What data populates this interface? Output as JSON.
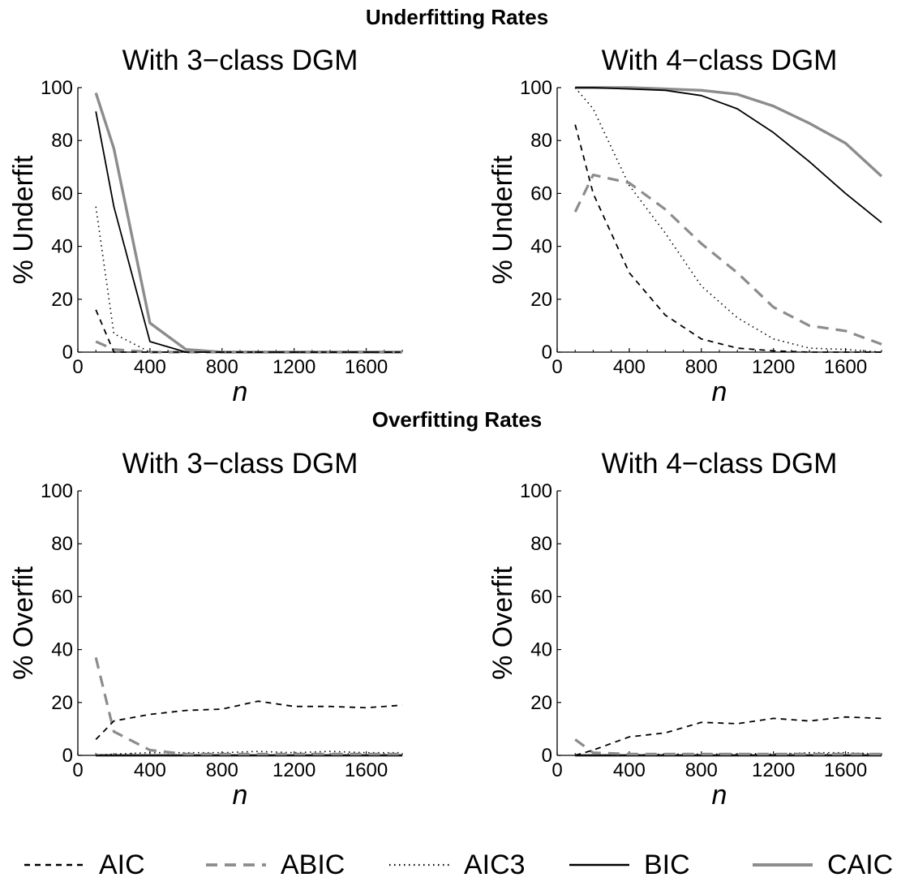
{
  "sections": {
    "underfitting_title": "Underfitting Rates",
    "overfitting_title": "Overfitting Rates"
  },
  "series_styles": [
    {
      "name": "AIC",
      "color": "#000000",
      "dash": "dashed-thin"
    },
    {
      "name": "ABIC",
      "color": "#8c8c8c",
      "dash": "dashed-thick"
    },
    {
      "name": "AIC3",
      "color": "#000000",
      "dash": "dotted"
    },
    {
      "name": "BIC",
      "color": "#000000",
      "dash": "solid-thin"
    },
    {
      "name": "CAIC",
      "color": "#8c8c8c",
      "dash": "solid-thick"
    }
  ],
  "legend": [
    "AIC",
    "ABIC",
    "AIC3",
    "BIC",
    "CAIC"
  ],
  "chart_data": [
    {
      "type": "line",
      "section": "Underfitting Rates",
      "title": "With 3−class DGM",
      "xlabel": "n",
      "ylabel": "% Underfit",
      "xlim": [
        0,
        1800
      ],
      "ylim": [
        0,
        100
      ],
      "xticks": [
        0,
        400,
        800,
        1200,
        1600
      ],
      "yticks": [
        0,
        20,
        40,
        60,
        80,
        100
      ],
      "x": [
        100,
        200,
        400,
        600,
        800,
        1000,
        1200,
        1400,
        1600,
        1800
      ],
      "series": [
        {
          "name": "AIC",
          "values": [
            16,
            0,
            0,
            0,
            0,
            0,
            0,
            0,
            0,
            0
          ]
        },
        {
          "name": "ABIC",
          "values": [
            4,
            1,
            0,
            0,
            0,
            0,
            0,
            0,
            0,
            0
          ]
        },
        {
          "name": "AIC3",
          "values": [
            55,
            7,
            0,
            0,
            0,
            0,
            0,
            0,
            0,
            0
          ]
        },
        {
          "name": "BIC",
          "values": [
            91,
            55,
            4,
            0,
            0,
            0,
            0,
            0,
            0,
            0
          ]
        },
        {
          "name": "CAIC",
          "values": [
            98,
            77,
            11,
            1,
            0,
            0,
            0,
            0,
            0,
            0
          ]
        }
      ]
    },
    {
      "type": "line",
      "section": "Underfitting Rates",
      "title": "With 4−class DGM",
      "xlabel": "n",
      "ylabel": "% Underfit",
      "xlim": [
        0,
        1800
      ],
      "ylim": [
        0,
        100
      ],
      "xticks": [
        0,
        400,
        800,
        1200,
        1600
      ],
      "yticks": [
        0,
        20,
        40,
        60,
        80,
        100
      ],
      "x": [
        100,
        200,
        400,
        600,
        800,
        1000,
        1200,
        1400,
        1600,
        1800
      ],
      "series": [
        {
          "name": "AIC",
          "values": [
            86,
            60,
            30,
            14,
            5,
            1.5,
            0.5,
            0,
            0,
            0
          ]
        },
        {
          "name": "ABIC",
          "values": [
            53,
            67,
            64,
            54,
            41,
            30,
            17,
            10,
            8,
            3
          ]
        },
        {
          "name": "AIC3",
          "values": [
            100,
            92,
            63,
            45,
            25,
            13,
            5,
            1.5,
            1,
            0
          ]
        },
        {
          "name": "BIC",
          "values": [
            100,
            100,
            99.5,
            99,
            97,
            92,
            83,
            72,
            60,
            49
          ]
        },
        {
          "name": "CAIC",
          "values": [
            100,
            100,
            100,
            99.5,
            99,
            97.5,
            93,
            86.5,
            79,
            66.5
          ]
        }
      ]
    },
    {
      "type": "line",
      "section": "Overfitting Rates",
      "title": "With 3−class DGM",
      "xlabel": "n",
      "ylabel": "% Overfit",
      "xlim": [
        0,
        1800
      ],
      "ylim": [
        0,
        100
      ],
      "xticks": [
        0,
        400,
        800,
        1200,
        1600
      ],
      "yticks": [
        0,
        20,
        40,
        60,
        80,
        100
      ],
      "x": [
        100,
        200,
        400,
        600,
        800,
        1000,
        1200,
        1400,
        1600,
        1800
      ],
      "series": [
        {
          "name": "AIC",
          "values": [
            6,
            13,
            15.5,
            17,
            17.5,
            20.5,
            18.5,
            18.5,
            18,
            19
          ]
        },
        {
          "name": "ABIC",
          "values": [
            37,
            9,
            2,
            0.5,
            0.5,
            0.5,
            0.5,
            0.5,
            0.5,
            0.5
          ]
        },
        {
          "name": "AIC3",
          "values": [
            0,
            0.5,
            1,
            1,
            1,
            1.5,
            1,
            1.5,
            1,
            1
          ]
        },
        {
          "name": "BIC",
          "values": [
            0,
            0,
            0,
            0,
            0,
            0,
            0,
            0,
            0,
            0
          ]
        },
        {
          "name": "CAIC",
          "values": [
            0,
            0,
            0,
            0,
            0,
            0,
            0,
            0,
            0,
            0
          ]
        }
      ]
    },
    {
      "type": "line",
      "section": "Overfitting Rates",
      "title": "With 4−class DGM",
      "xlabel": "n",
      "ylabel": "% Overfit",
      "xlim": [
        0,
        1800
      ],
      "ylim": [
        0,
        100
      ],
      "xticks": [
        0,
        400,
        800,
        1200,
        1600
      ],
      "yticks": [
        0,
        20,
        40,
        60,
        80,
        100
      ],
      "x": [
        100,
        200,
        400,
        600,
        800,
        1000,
        1200,
        1400,
        1600,
        1800
      ],
      "series": [
        {
          "name": "AIC",
          "values": [
            0,
            2,
            7,
            8.5,
            12.5,
            12,
            14,
            13,
            14.5,
            14
          ]
        },
        {
          "name": "ABIC",
          "values": [
            6,
            1,
            0.5,
            0.5,
            0.5,
            0.5,
            0.5,
            0.5,
            0.5,
            0.5
          ]
        },
        {
          "name": "AIC3",
          "values": [
            0,
            0,
            0,
            0.5,
            0.5,
            0.5,
            0.5,
            1,
            1,
            0.5
          ]
        },
        {
          "name": "BIC",
          "values": [
            0,
            0,
            0,
            0,
            0,
            0,
            0,
            0,
            0,
            0
          ]
        },
        {
          "name": "CAIC",
          "values": [
            0,
            0,
            0,
            0,
            0,
            0,
            0,
            0,
            0,
            0
          ]
        }
      ]
    }
  ]
}
